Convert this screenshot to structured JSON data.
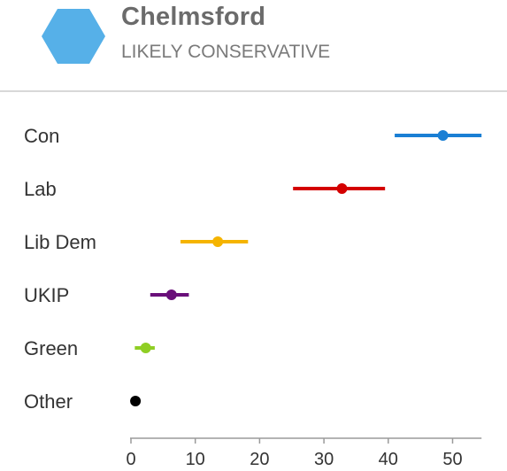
{
  "header": {
    "constituency": "Chelmsford",
    "forecast": "LIKELY CONSERVATIVE",
    "hex_color": "#56b0e8"
  },
  "chart_data": {
    "type": "scatter",
    "orientation": "horizontal",
    "categories": [
      "Con",
      "Lab",
      "Lib Dem",
      "UKIP",
      "Green",
      "Other"
    ],
    "points": [
      {
        "party": "Con",
        "value": 48.5,
        "low": 41,
        "high": 54.5,
        "color": "#1a7fd4"
      },
      {
        "party": "Lab",
        "value": 32.8,
        "low": 25.2,
        "high": 39.5,
        "color": "#d40000"
      },
      {
        "party": "Lib Dem",
        "value": 13.5,
        "low": 7.7,
        "high": 18.2,
        "color": "#f5b400"
      },
      {
        "party": "UKIP",
        "value": 6.3,
        "low": 3.0,
        "high": 9.0,
        "color": "#6a0f7a"
      },
      {
        "party": "Green",
        "value": 2.3,
        "low": 0.6,
        "high": 3.7,
        "color": "#8fce24"
      },
      {
        "party": "Other",
        "value": 0.7,
        "low": 0.7,
        "high": 0.7,
        "color": "#000000"
      }
    ],
    "x_ticks": [
      0,
      10,
      20,
      30,
      40,
      50
    ],
    "xlim": [
      0,
      54.5
    ],
    "xlabel": "",
    "ylabel": "",
    "grid": false,
    "axis_color": "#9a9a9a"
  }
}
